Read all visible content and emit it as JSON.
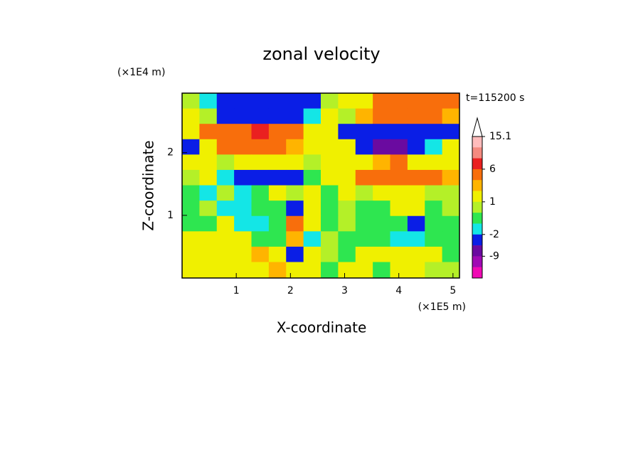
{
  "chart_data": {
    "type": "contour",
    "title": "zonal velocity",
    "x_label": "X-coordinate",
    "y_label": "Z-coordinate",
    "x_unit": "(×1E5 m)",
    "y_unit": "(×1E4 m)",
    "annotation": "t=115200 s",
    "xlim": [
      0,
      5.12
    ],
    "ylim": [
      0,
      2.95
    ],
    "xticks": [
      1,
      2,
      3,
      4,
      5
    ],
    "yticks": [
      1,
      2
    ],
    "x": [
      0.16,
      0.48,
      0.8,
      1.12,
      1.44,
      1.76,
      2.08,
      2.4,
      2.72,
      3.04,
      3.36,
      3.68,
      4.0,
      4.32,
      4.64,
      4.96
    ],
    "y": [
      2.83,
      2.58,
      2.34,
      2.09,
      1.85,
      1.6,
      1.36,
      1.11,
      0.87,
      0.62,
      0.38,
      0.13
    ],
    "z": [
      [
        0,
        -1.5,
        -3,
        -4,
        -4,
        -4,
        -3.5,
        -3,
        0.5,
        1,
        1.5,
        4,
        4,
        4,
        4,
        3
      ],
      [
        1,
        0.5,
        -3,
        -4,
        -4,
        -4,
        -4,
        -2,
        1,
        0.5,
        2,
        4,
        5,
        4.5,
        4,
        2
      ],
      [
        1.5,
        4,
        5,
        5,
        7,
        5,
        4,
        1.5,
        1,
        -3,
        -3,
        -4,
        -3,
        -3.5,
        -4,
        -3
      ],
      [
        -3,
        1.5,
        3,
        4,
        4,
        3,
        2.5,
        1.5,
        1.5,
        1,
        -3,
        -6,
        -6,
        -3,
        -2,
        1
      ],
      [
        1.5,
        1.5,
        0.5,
        1.5,
        1.5,
        1.5,
        1,
        0.5,
        1.5,
        1.5,
        1.5,
        2.5,
        3,
        1.5,
        1.5,
        1.5
      ],
      [
        0.5,
        1.5,
        -1.5,
        -4,
        -4,
        -4,
        -4,
        -1,
        1,
        1.5,
        3,
        4,
        5,
        4,
        4,
        2
      ],
      [
        -0.5,
        -1.5,
        0.5,
        -1.5,
        -0.5,
        1,
        0.5,
        1,
        -0.5,
        1.5,
        0.5,
        1.5,
        1.5,
        1.5,
        0.5,
        0.5
      ],
      [
        -0.5,
        0.5,
        -1.5,
        -1.5,
        -0.5,
        -0.5,
        -3,
        1,
        -0.5,
        0.5,
        -0.5,
        -0.5,
        1.5,
        1.5,
        -0.5,
        0.5
      ],
      [
        -0.5,
        -0.5,
        1.5,
        -1.5,
        -1.5,
        -0.5,
        3,
        1.5,
        -0.5,
        0.5,
        -0.5,
        -0.5,
        -0.5,
        -3,
        -0.5,
        -0.5
      ],
      [
        1.5,
        1.5,
        1.5,
        1.5,
        -0.5,
        -0.5,
        2.5,
        -1.5,
        0.5,
        -0.5,
        -0.5,
        -0.5,
        -1.5,
        -1.5,
        -0.5,
        -0.5
      ],
      [
        1.5,
        1.5,
        1.5,
        1.5,
        2.5,
        1.5,
        -3,
        1.5,
        0.5,
        -0.5,
        1.5,
        1.5,
        1.5,
        1.5,
        1.5,
        -0.5
      ],
      [
        1.5,
        1.5,
        1.5,
        1.5,
        1.5,
        2.5,
        1.5,
        1.5,
        -0.5,
        1.5,
        1.5,
        -0.5,
        1.5,
        1.5,
        0.5,
        0.5
      ]
    ],
    "levels": [
      15.1,
      12,
      9,
      6,
      3,
      2,
      1,
      0,
      -1,
      -2,
      -5,
      -9,
      -12,
      -15.1
    ],
    "colors": [
      "#ffbcbc",
      "#f48a80",
      "#ea2020",
      "#f86e0c",
      "#ffb400",
      "#f0f000",
      "#b4f028",
      "#2ee650",
      "#14e6e6",
      "#0a1ee6",
      "#6a0aa0",
      "#a00ab4",
      "#f00ab4"
    ],
    "colorbar_ticks": [
      15.1,
      6,
      1,
      -2,
      -9
    ]
  }
}
